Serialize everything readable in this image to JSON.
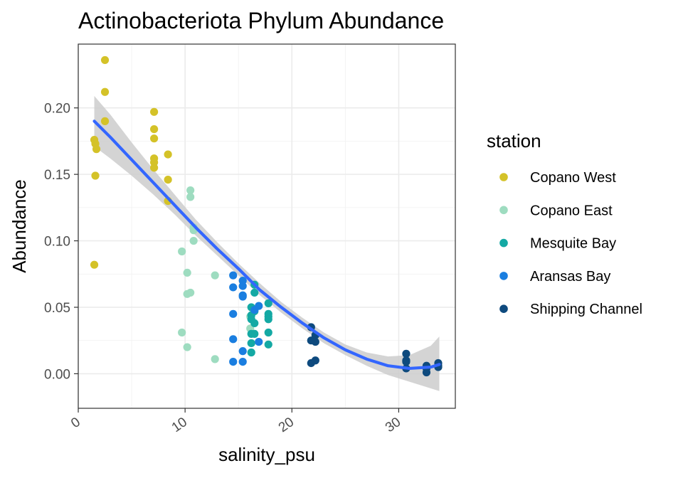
{
  "chart_data": {
    "type": "scatter",
    "title": "Actinobacteriota Phylum Abundance",
    "xlabel": "salinity_psu",
    "ylabel": "Abundance",
    "xlim": [
      0,
      35.3
    ],
    "ylim": [
      -0.026,
      0.248
    ],
    "x_ticks": [
      0,
      10,
      20,
      30
    ],
    "x_tick_labels": [
      "0",
      "10",
      "20",
      "30"
    ],
    "y_ticks": [
      0.0,
      0.05,
      0.1,
      0.15,
      0.2
    ],
    "y_tick_labels": [
      "0.00",
      "0.05",
      "0.10",
      "0.15",
      "0.20"
    ],
    "grid": true,
    "legend": {
      "title": "station",
      "position": "right"
    },
    "series": [
      {
        "name": "Copano West",
        "color": "#D4C228",
        "points": [
          [
            2.5,
            0.236
          ],
          [
            2.5,
            0.212
          ],
          [
            2.5,
            0.19
          ],
          [
            1.5,
            0.176
          ],
          [
            1.6,
            0.173
          ],
          [
            1.7,
            0.169
          ],
          [
            1.6,
            0.149
          ],
          [
            1.5,
            0.082
          ],
          [
            7.1,
            0.197
          ],
          [
            7.1,
            0.184
          ],
          [
            7.1,
            0.177
          ],
          [
            7.1,
            0.162
          ],
          [
            7.1,
            0.159
          ],
          [
            7.1,
            0.155
          ],
          [
            8.4,
            0.165
          ],
          [
            8.4,
            0.146
          ],
          [
            8.4,
            0.13
          ]
        ]
      },
      {
        "name": "Copano East",
        "color": "#9EDCC0",
        "points": [
          [
            10.5,
            0.138
          ],
          [
            10.5,
            0.133
          ],
          [
            10.8,
            0.11
          ],
          [
            10.8,
            0.108
          ],
          [
            10.8,
            0.1
          ],
          [
            9.7,
            0.092
          ],
          [
            10.2,
            0.076
          ],
          [
            10.5,
            0.061
          ],
          [
            10.2,
            0.06
          ],
          [
            9.7,
            0.031
          ],
          [
            10.2,
            0.02
          ],
          [
            12.8,
            0.074
          ],
          [
            12.8,
            0.011
          ],
          [
            16.1,
            0.043
          ],
          [
            16.1,
            0.034
          ]
        ]
      },
      {
        "name": "Mesquite Bay",
        "color": "#14A9A4",
        "points": [
          [
            16.5,
            0.067
          ],
          [
            16.5,
            0.061
          ],
          [
            16.2,
            0.05
          ],
          [
            16.5,
            0.047
          ],
          [
            16.2,
            0.044
          ],
          [
            16.2,
            0.041
          ],
          [
            16.5,
            0.038
          ],
          [
            16.2,
            0.03
          ],
          [
            16.5,
            0.03
          ],
          [
            16.2,
            0.023
          ],
          [
            16.2,
            0.016
          ],
          [
            17.8,
            0.053
          ],
          [
            17.8,
            0.045
          ],
          [
            17.8,
            0.043
          ],
          [
            17.8,
            0.041
          ],
          [
            17.8,
            0.031
          ],
          [
            17.8,
            0.022
          ]
        ]
      },
      {
        "name": "Aransas Bay",
        "color": "#1A7EE0",
        "points": [
          [
            14.5,
            0.074
          ],
          [
            15.4,
            0.07
          ],
          [
            15.4,
            0.066
          ],
          [
            14.5,
            0.065
          ],
          [
            15.4,
            0.059
          ],
          [
            15.4,
            0.058
          ],
          [
            14.5,
            0.045
          ],
          [
            14.5,
            0.026
          ],
          [
            15.4,
            0.017
          ],
          [
            14.5,
            0.009
          ],
          [
            15.4,
            0.009
          ],
          [
            16.5,
            0.048
          ],
          [
            16.9,
            0.051
          ],
          [
            16.9,
            0.024
          ]
        ]
      },
      {
        "name": "Shipping Channel",
        "color": "#0E4A7E",
        "points": [
          [
            21.8,
            0.035
          ],
          [
            22.2,
            0.029
          ],
          [
            21.8,
            0.025
          ],
          [
            22.2,
            0.024
          ],
          [
            21.8,
            0.008
          ],
          [
            22.2,
            0.01
          ],
          [
            30.7,
            0.015
          ],
          [
            30.7,
            0.01
          ],
          [
            30.7,
            0.009
          ],
          [
            30.7,
            0.004
          ],
          [
            32.6,
            0.006
          ],
          [
            32.6,
            0.004
          ],
          [
            32.6,
            0.001
          ],
          [
            33.7,
            0.008
          ],
          [
            33.7,
            0.006
          ],
          [
            33.7,
            0.005
          ]
        ]
      }
    ],
    "smooth": {
      "color": "#3366FF",
      "band_color": "#CCCCCC",
      "x": [
        1.5,
        3,
        5,
        7,
        9,
        11,
        13,
        15,
        17,
        19,
        21,
        23,
        25,
        27,
        29,
        31,
        33,
        33.8
      ],
      "y": [
        0.19,
        0.178,
        0.161,
        0.144,
        0.127,
        0.11,
        0.094,
        0.079,
        0.063,
        0.05,
        0.038,
        0.027,
        0.018,
        0.011,
        0.006,
        0.004,
        0.005,
        0.007
      ],
      "lower": [
        0.171,
        0.162,
        0.149,
        0.135,
        0.12,
        0.104,
        0.089,
        0.074,
        0.059,
        0.046,
        0.034,
        0.023,
        0.014,
        0.006,
        -0.001,
        -0.006,
        -0.011,
        -0.013
      ],
      "upper": [
        0.209,
        0.195,
        0.174,
        0.154,
        0.135,
        0.116,
        0.099,
        0.083,
        0.068,
        0.054,
        0.042,
        0.031,
        0.022,
        0.016,
        0.013,
        0.014,
        0.021,
        0.028
      ]
    }
  }
}
